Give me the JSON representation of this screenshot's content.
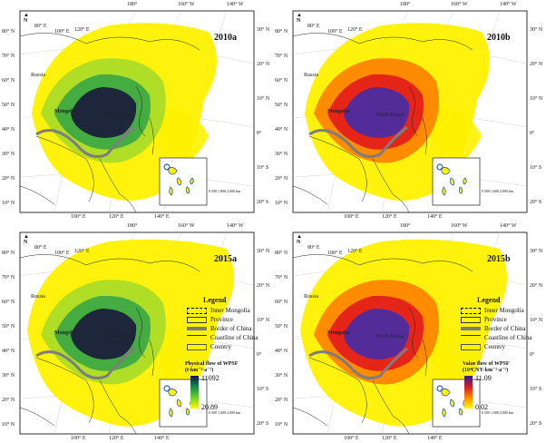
{
  "panels": [
    {
      "title": "2010a",
      "variant": "physical"
    },
    {
      "title": "2010b",
      "variant": "value"
    },
    {
      "title": "2015a",
      "variant": "physical"
    },
    {
      "title": "2015b",
      "variant": "value"
    }
  ],
  "labels": {
    "top_lon": [
      "180°",
      "160° W",
      "140° W"
    ],
    "bottom_lon": [
      "100° E",
      "120° E",
      "140° E"
    ],
    "inset_lon": [
      "80° E",
      "100° E",
      "120° E"
    ],
    "left_lat": [
      "80° N",
      "70° N",
      "60° N",
      "50° N",
      "40° N",
      "30° N",
      "20° N",
      "10° N"
    ],
    "right_lat": [
      "30° N",
      "20° N",
      "10° N",
      "0°",
      "10° S",
      "20° S"
    ],
    "north": "N",
    "scale": "0  500 1,000     2,000 km",
    "countries": {
      "russia": "Russia",
      "mongolia": "Mongolia",
      "north_korea": "North Korea"
    }
  },
  "legend": {
    "title": "Legend",
    "items": [
      "Inner Mongolia",
      "Province",
      "Border of China",
      "Coastline of China",
      "Country"
    ]
  },
  "colorbar_physical": {
    "title_line1": "Physical flow of  WPSF",
    "title_line2": "(t·km⁻²·a⁻¹)",
    "max": "11092",
    "min": "20.89",
    "colors": [
      "#12134a",
      "#138a4b",
      "#6fcf2e",
      "#fffa00"
    ]
  },
  "colorbar_value": {
    "title_line1": "Value flow of  WPSF",
    "title_line2": "(10⁴CNY·km⁻²·a⁻¹)",
    "max": "11.09",
    "min": "0.02",
    "colors": [
      "#2b1d8f",
      "#d81b24",
      "#ff8a00",
      "#fffa00"
    ]
  },
  "colors": {
    "yellow": "#fff200",
    "green_light": "#a7dc2a",
    "green_mid": "#3aa646",
    "dark": "#1b1f3a",
    "red": "#e31a1c",
    "orange": "#ff7f00",
    "purple": "#4b2ca0",
    "border_gray": "#808080"
  }
}
